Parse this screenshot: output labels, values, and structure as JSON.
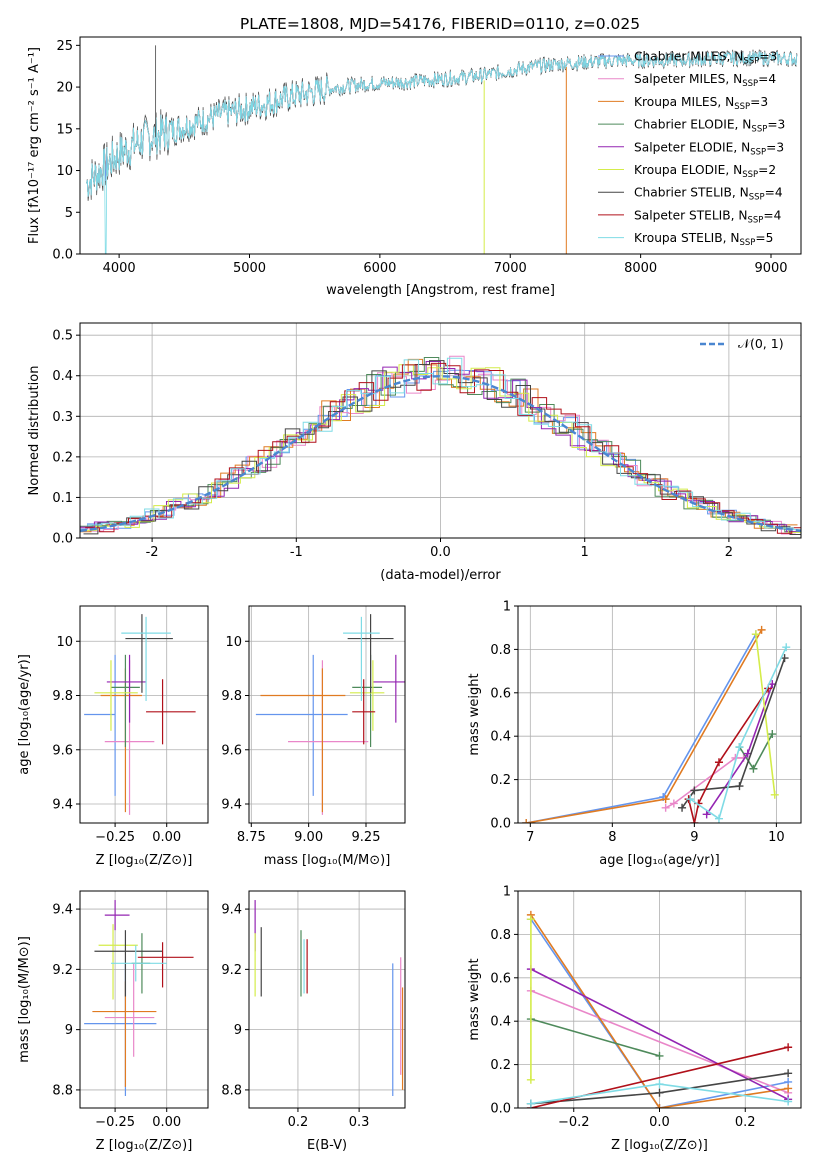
{
  "figure_title": "PLATE=1808, MJD=54176, FIBERID=0110, z=0.025",
  "series_styles": [
    {
      "name": "Chabrier MILES",
      "nssp": "3",
      "color": "#6495ed"
    },
    {
      "name": "Salpeter MILES",
      "nssp": "4",
      "color": "#e987c9"
    },
    {
      "name": "Kroupa MILES",
      "nssp": "3",
      "color": "#e07b22"
    },
    {
      "name": "Chabrier ELODIE",
      "nssp": "3",
      "color": "#4e8a5b"
    },
    {
      "name": "Salpeter ELODIE",
      "nssp": "3",
      "color": "#9425b2"
    },
    {
      "name": "Kroupa ELODIE",
      "nssp": "2",
      "color": "#d4ec4a"
    },
    {
      "name": "Chabrier STELIB",
      "nssp": "4",
      "color": "#454545"
    },
    {
      "name": "Salpeter STELIB",
      "nssp": "4",
      "color": "#b0101a"
    },
    {
      "name": "Kroupa STELIB",
      "nssp": "5",
      "color": "#7fdbe5"
    }
  ],
  "chart_data": [
    {
      "id": "spectrum",
      "type": "line",
      "xlabel": "wavelength [Angstrom, rest frame]",
      "ylabel": "Flux [fλ10⁻¹⁷ erg cm⁻² s⁻¹ A⁻¹]",
      "xlim": [
        3700,
        9230
      ],
      "ylim": [
        0,
        26
      ],
      "xticks": [
        4000,
        5000,
        6000,
        7000,
        8000,
        9000
      ],
      "yticks": [
        0,
        5,
        10,
        15,
        20,
        25
      ],
      "grid": false,
      "legend_position": "right",
      "continuum_x": [
        3750,
        4000,
        4200,
        4400,
        4600,
        4800,
        5000,
        5300,
        5600,
        5900,
        6200,
        6500,
        6800,
        7000,
        7200,
        7400,
        7600,
        7800,
        8100,
        8400,
        8800,
        9200
      ],
      "continuum_y": [
        8.5,
        12,
        13.8,
        14.8,
        15.8,
        16.8,
        17.5,
        18.8,
        19.8,
        20.4,
        20.6,
        21.0,
        21.4,
        22.0,
        22.5,
        22.8,
        23.0,
        23.2,
        23.2,
        23.3,
        23.5,
        23.4
      ]
    },
    {
      "id": "residuals",
      "type": "step",
      "xlabel": "(data-model)/error",
      "ylabel": "Normed distribution",
      "xlim": [
        -2.5,
        2.5
      ],
      "ylim": [
        0,
        0.53
      ],
      "xticks": [
        -2,
        -1,
        0,
        1,
        2
      ],
      "yticks": [
        0.0,
        0.1,
        0.2,
        0.3,
        0.4,
        0.5
      ],
      "grid": true,
      "legend_position": "top-right",
      "reference_curve": "N(0,1)",
      "bin_width": 0.1
    },
    {
      "id": "age_vs_Z",
      "type": "errorbar",
      "xlabel": "Z",
      "ylabel": "age",
      "xlim": [
        -0.42,
        0.2
      ],
      "ylim": [
        9.33,
        10.13
      ],
      "xticks": [
        -0.25,
        0.0
      ],
      "yticks": [
        9.4,
        9.6,
        9.8,
        10.0
      ],
      "grid": true,
      "points": [
        {
          "x": -0.25,
          "xerr": [
            0.15,
            0.0
          ],
          "y": 9.73,
          "yerr": [
            0.3,
            0.22
          ]
        },
        {
          "x": -0.18,
          "xerr": [
            0.12,
            0.12
          ],
          "y": 9.63,
          "yerr": [
            0.27,
            0.3
          ]
        },
        {
          "x": -0.2,
          "xerr": [
            0.12,
            0.08
          ],
          "y": 9.8,
          "yerr": [
            0.43,
            0.1
          ]
        },
        {
          "x": -0.2,
          "xerr": [
            0.07,
            0.07
          ],
          "y": 9.83,
          "yerr": [
            0.22,
            0.12
          ]
        },
        {
          "x": -0.18,
          "xerr": [
            0.11,
            0.08
          ],
          "y": 9.85,
          "yerr": [
            0.15,
            0.1
          ]
        },
        {
          "x": -0.27,
          "xerr": [
            0.08,
            0.13
          ],
          "y": 9.81,
          "yerr": [
            0.14,
            0.12
          ]
        },
        {
          "x": -0.12,
          "xerr": [
            0.08,
            0.15
          ],
          "y": 10.01,
          "yerr": [
            0.2,
            0.09
          ]
        },
        {
          "x": -0.02,
          "xerr": [
            0.08,
            0.16
          ],
          "y": 9.74,
          "yerr": [
            0.12,
            0.12
          ]
        },
        {
          "x": -0.1,
          "xerr": [
            0.12,
            0.12
          ],
          "y": 10.03,
          "yerr": [
            0.25,
            0.06
          ]
        }
      ]
    },
    {
      "id": "age_vs_mass",
      "type": "errorbar",
      "xlabel": "mass",
      "ylabel": "",
      "xlim": [
        8.74,
        9.42
      ],
      "ylim": [
        9.33,
        10.13
      ],
      "xticks": [
        8.75,
        9.0,
        9.25
      ],
      "yticks": [
        9.4,
        9.6,
        9.8,
        10.0
      ],
      "grid": true,
      "points": [
        {
          "x": 9.02,
          "xerr": [
            0.25,
            0.15
          ],
          "y": 9.73,
          "yerr": [
            0.3,
            0.22
          ]
        },
        {
          "x": 9.06,
          "xerr": [
            0.15,
            0.2
          ],
          "y": 9.63,
          "yerr": [
            0.27,
            0.3
          ]
        },
        {
          "x": 9.06,
          "xerr": [
            0.27,
            0.1
          ],
          "y": 9.8,
          "yerr": [
            0.43,
            0.1
          ]
        },
        {
          "x": 9.27,
          "xerr": [
            0.08,
            0.05
          ],
          "y": 9.83,
          "yerr": [
            0.22,
            0.12
          ]
        },
        {
          "x": 9.38,
          "xerr": [
            0.1,
            0.05
          ],
          "y": 9.85,
          "yerr": [
            0.15,
            0.1
          ]
        },
        {
          "x": 9.28,
          "xerr": [
            0.1,
            0.05
          ],
          "y": 9.81,
          "yerr": [
            0.14,
            0.12
          ]
        },
        {
          "x": 9.27,
          "xerr": [
            0.1,
            0.1
          ],
          "y": 10.01,
          "yerr": [
            0.2,
            0.09
          ]
        },
        {
          "x": 9.24,
          "xerr": [
            0.05,
            0.05
          ],
          "y": 9.74,
          "yerr": [
            0.12,
            0.12
          ]
        },
        {
          "x": 9.23,
          "xerr": [
            0.08,
            0.08
          ],
          "y": 10.03,
          "yerr": [
            0.25,
            0.06
          ]
        }
      ]
    },
    {
      "id": "weight_vs_age",
      "type": "line",
      "xlabel": "age",
      "ylabel": "mass weight",
      "xlim": [
        6.85,
        10.3
      ],
      "ylim": [
        0,
        1
      ],
      "xticks": [
        7,
        8,
        9,
        10
      ],
      "yticks": [
        0.0,
        0.2,
        0.4,
        0.6,
        0.8,
        1.0
      ],
      "grid": true,
      "series": [
        {
          "x": [
            6.95,
            8.62,
            9.75
          ],
          "y": [
            0.0,
            0.12,
            0.87
          ]
        },
        {
          "x": [
            8.65,
            8.75,
            9.5,
            9.6
          ],
          "y": [
            0.07,
            0.09,
            0.3,
            0.3
          ]
        },
        {
          "x": [
            6.95,
            8.65,
            9.82
          ],
          "y": [
            0.0,
            0.11,
            0.89
          ]
        },
        {
          "x": [
            9.55,
            9.72,
            9.95
          ],
          "y": [
            0.35,
            0.25,
            0.41
          ]
        },
        {
          "x": [
            9.15,
            9.65,
            9.95
          ],
          "y": [
            0.04,
            0.32,
            0.64
          ]
        },
        {
          "x": [
            9.75,
            9.98
          ],
          "y": [
            0.87,
            0.13
          ]
        },
        {
          "x": [
            8.85,
            9.0,
            9.55,
            10.1
          ],
          "y": [
            0.07,
            0.15,
            0.17,
            0.76
          ]
        },
        {
          "x": [
            8.93,
            9.0,
            9.05,
            9.3,
            9.9
          ],
          "y": [
            0.11,
            0.0,
            0.09,
            0.28,
            0.62
          ]
        },
        {
          "x": [
            8.95,
            9.3,
            9.55,
            10.12
          ],
          "y": [
            0.11,
            0.02,
            0.35,
            0.81
          ]
        }
      ]
    },
    {
      "id": "mass_vs_Z",
      "type": "errorbar",
      "xlabel": "Z",
      "ylabel": "mass",
      "xlim": [
        -0.42,
        0.2
      ],
      "ylim": [
        8.74,
        9.46
      ],
      "xticks": [
        -0.25,
        0.0
      ],
      "yticks": [
        8.8,
        9.0,
        9.2,
        9.4
      ],
      "grid": true,
      "points": [
        {
          "x": -0.2,
          "xerr": [
            0.2,
            0.15
          ],
          "y": 9.02,
          "yerr": [
            0.24,
            0.2
          ]
        },
        {
          "x": -0.16,
          "xerr": [
            0.14,
            0.1
          ],
          "y": 9.04,
          "yerr": [
            0.13,
            0.18
          ]
        },
        {
          "x": -0.2,
          "xerr": [
            0.16,
            0.15
          ],
          "y": 9.06,
          "yerr": [
            0.25,
            0.1
          ]
        },
        {
          "x": -0.12,
          "xerr": [
            0.05,
            0.04
          ],
          "y": 9.22,
          "yerr": [
            0.1,
            0.1
          ]
        },
        {
          "x": -0.25,
          "xerr": [
            0.05,
            0.07
          ],
          "y": 9.38,
          "yerr": [
            0.05,
            0.05
          ]
        },
        {
          "x": -0.26,
          "xerr": [
            0.07,
            0.12
          ],
          "y": 9.28,
          "yerr": [
            0.18,
            0.07
          ]
        },
        {
          "x": -0.2,
          "xerr": [
            0.15,
            0.18
          ],
          "y": 9.26,
          "yerr": [
            0.15,
            0.07
          ]
        },
        {
          "x": -0.02,
          "xerr": [
            0.12,
            0.15
          ],
          "y": 9.24,
          "yerr": [
            0.1,
            0.05
          ]
        },
        {
          "x": -0.15,
          "xerr": [
            0.12,
            0.15
          ],
          "y": 9.22,
          "yerr": [
            0.06,
            0.06
          ]
        }
      ]
    },
    {
      "id": "mass_vs_ebv",
      "type": "errorbar",
      "xlabel": "E(B-V)",
      "ylabel": "",
      "xlim": [
        0.12,
        0.375
      ],
      "ylim": [
        8.74,
        9.46
      ],
      "xticks": [
        0.2,
        0.3
      ],
      "yticks": [
        8.8,
        9.0,
        9.2,
        9.4
      ],
      "grid": true,
      "points": [
        {
          "x": 0.355,
          "y": 9.0,
          "yerr": [
            0.22,
            0.22
          ]
        },
        {
          "x": 0.368,
          "y": 9.05,
          "yerr": [
            0.2,
            0.19
          ]
        },
        {
          "x": 0.371,
          "y": 9.0,
          "yerr": [
            0.2,
            0.14
          ]
        },
        {
          "x": 0.205,
          "y": 9.22,
          "yerr": [
            0.11,
            0.11
          ]
        },
        {
          "x": 0.13,
          "y": 9.36,
          "yerr": [
            0.1,
            0.07
          ]
        },
        {
          "x": 0.13,
          "y": 9.22,
          "yerr": [
            0.11,
            0.1
          ]
        },
        {
          "x": 0.14,
          "y": 9.22,
          "yerr": [
            0.11,
            0.12
          ]
        },
        {
          "x": 0.215,
          "y": 9.2,
          "yerr": [
            0.08,
            0.1
          ]
        },
        {
          "x": 0.21,
          "y": 9.2,
          "yerr": [
            0.08,
            0.1
          ]
        }
      ]
    },
    {
      "id": "weight_vs_Z",
      "type": "line",
      "xlabel": "Z",
      "ylabel": "mass weight",
      "xlim": [
        -0.33,
        0.33
      ],
      "ylim": [
        0,
        1
      ],
      "xticks": [
        -0.2,
        0.0,
        0.2
      ],
      "yticks": [
        0.0,
        0.2,
        0.4,
        0.6,
        0.8,
        1.0
      ],
      "grid": true,
      "series": [
        {
          "x": [
            -0.3,
            0.0,
            0.3
          ],
          "y": [
            0.87,
            0.0,
            0.12
          ]
        },
        {
          "x": [
            -0.3,
            0.3
          ],
          "y": [
            0.54,
            0.07
          ]
        },
        {
          "x": [
            -0.3,
            0.0,
            0.3
          ],
          "y": [
            0.89,
            0.0,
            0.09
          ]
        },
        {
          "x": [
            -0.3,
            0.0
          ],
          "y": [
            0.41,
            0.24
          ]
        },
        {
          "x": [
            -0.3,
            0.3
          ],
          "y": [
            0.64,
            0.04
          ]
        },
        {
          "x": [
            -0.3,
            -0.3
          ],
          "y": [
            0.87,
            0.13
          ]
        },
        {
          "x": [
            -0.3,
            0.0,
            0.3
          ],
          "y": [
            0.02,
            0.07,
            0.16
          ]
        },
        {
          "x": [
            -0.3,
            0.3
          ],
          "y": [
            0.0,
            0.28
          ]
        },
        {
          "x": [
            -0.3,
            0.0,
            0.3
          ],
          "y": [
            0.02,
            0.11,
            0.03
          ]
        }
      ]
    }
  ]
}
